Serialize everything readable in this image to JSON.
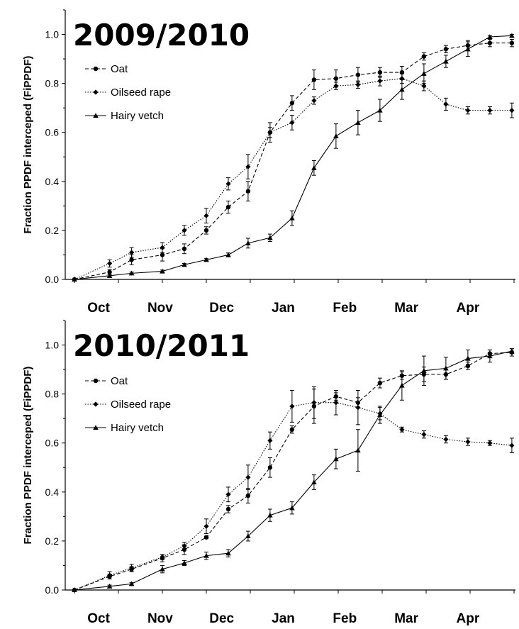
{
  "chart_data": [
    {
      "type": "line",
      "title": "2009/2010",
      "ylabel": "Fraction PPDF interceped (FiPPDF)",
      "xlabel": "",
      "ylim": [
        0,
        1.1
      ],
      "yticks": [
        "0.0",
        "0.2",
        "0.4",
        "0.6",
        "0.8",
        "1.0"
      ],
      "month_labels": [
        "Oct",
        "Nov",
        "Dec",
        "Jan",
        "Feb",
        "Mar",
        "Apr"
      ],
      "legend_position": "top-left",
      "grid": false,
      "series": [
        {
          "name": "Oat",
          "style": "dashed",
          "marker": "circle",
          "x": [
            0,
            0.8,
            1.3,
            2.0,
            2.5,
            3.0,
            3.5,
            3.95,
            4.45,
            4.95,
            5.45,
            5.95,
            6.45,
            6.95,
            7.45,
            7.95,
            8.45,
            8.95,
            9.45,
            9.95
          ],
          "values": [
            0.0,
            0.03,
            0.08,
            0.1,
            0.125,
            0.2,
            0.295,
            0.36,
            0.6,
            0.72,
            0.815,
            0.82,
            0.835,
            0.845,
            0.845,
            0.91,
            0.94,
            0.955,
            0.965,
            0.965
          ],
          "errors": [
            0,
            0.01,
            0.02,
            0.025,
            0.02,
            0.015,
            0.025,
            0.04,
            0.02,
            0.03,
            0.04,
            0.035,
            0.03,
            0.02,
            0.025,
            0.015,
            0.015,
            0.02,
            0.015,
            0.015
          ]
        },
        {
          "name": "Oilseed rape",
          "style": "dotted",
          "marker": "diamond",
          "x": [
            0,
            0.8,
            1.3,
            2.0,
            2.5,
            3.0,
            3.5,
            3.95,
            4.45,
            4.95,
            5.45,
            5.95,
            6.45,
            6.95,
            7.45,
            7.95,
            8.45,
            8.95,
            9.45,
            9.95
          ],
          "values": [
            0.0,
            0.065,
            0.11,
            0.13,
            0.2,
            0.26,
            0.39,
            0.46,
            0.6,
            0.64,
            0.73,
            0.79,
            0.795,
            0.81,
            0.82,
            0.79,
            0.715,
            0.69,
            0.69,
            0.69
          ],
          "errors": [
            0,
            0.015,
            0.02,
            0.02,
            0.02,
            0.03,
            0.025,
            0.05,
            0.04,
            0.03,
            0.015,
            0.015,
            0.015,
            0.02,
            0.02,
            0.02,
            0.025,
            0.015,
            0.015,
            0.03
          ]
        },
        {
          "name": "Hairy vetch",
          "style": "solid",
          "marker": "triangle",
          "x": [
            0,
            0.8,
            1.3,
            2.0,
            2.5,
            3.0,
            3.5,
            3.95,
            4.45,
            4.95,
            5.45,
            5.95,
            6.45,
            6.95,
            7.45,
            7.95,
            8.45,
            8.95,
            9.45,
            9.95
          ],
          "values": [
            0.0,
            0.015,
            0.025,
            0.033,
            0.06,
            0.08,
            0.1,
            0.148,
            0.17,
            0.25,
            0.455,
            0.585,
            0.64,
            0.69,
            0.775,
            0.84,
            0.89,
            0.94,
            0.99,
            0.995
          ],
          "errors": [
            0,
            0.005,
            0.005,
            0.005,
            0.005,
            0.005,
            0.008,
            0.02,
            0.015,
            0.03,
            0.03,
            0.05,
            0.05,
            0.045,
            0.04,
            0.04,
            0.025,
            0.03,
            0.005,
            0.005
          ]
        }
      ]
    },
    {
      "type": "line",
      "title": "2010/2011",
      "ylabel": "Fraction PPDF interceped (FiPPDF)",
      "xlabel": "",
      "ylim": [
        0,
        1.1
      ],
      "yticks": [
        "0.0",
        "0.2",
        "0.4",
        "0.6",
        "0.8",
        "1.0"
      ],
      "month_labels": [
        "Oct",
        "Nov",
        "Dec",
        "Jan",
        "Feb",
        "Mar",
        "Apr"
      ],
      "legend_position": "top-left",
      "grid": false,
      "series": [
        {
          "name": "Oat",
          "style": "dashed",
          "marker": "circle",
          "x": [
            0,
            0.8,
            1.3,
            2.0,
            2.5,
            3.0,
            3.5,
            3.95,
            4.45,
            4.95,
            5.45,
            5.95,
            6.45,
            6.95,
            7.45,
            7.95,
            8.45,
            8.95,
            9.45,
            9.95
          ],
          "values": [
            0.0,
            0.055,
            0.085,
            0.13,
            0.165,
            0.215,
            0.33,
            0.385,
            0.5,
            0.655,
            0.75,
            0.79,
            0.765,
            0.845,
            0.875,
            0.88,
            0.88,
            0.915,
            0.965,
            0.97
          ],
          "errors": [
            0,
            0.01,
            0.01,
            0.015,
            0.02,
            0.005,
            0.015,
            0.03,
            0.04,
            0.015,
            0.07,
            0.015,
            0.02,
            0.02,
            0.015,
            0.03,
            0.02,
            0.015,
            0.015,
            0.015
          ]
        },
        {
          "name": "Oilseed rape",
          "style": "dotted",
          "marker": "diamond",
          "x": [
            0,
            0.8,
            1.3,
            2.0,
            2.5,
            3.0,
            3.5,
            3.95,
            4.45,
            4.95,
            5.45,
            5.95,
            6.45,
            6.95,
            7.45,
            7.95,
            8.45,
            8.95,
            9.45,
            9.95
          ],
          "values": [
            0.0,
            0.06,
            0.09,
            0.135,
            0.18,
            0.26,
            0.39,
            0.46,
            0.61,
            0.75,
            0.765,
            0.765,
            0.745,
            0.72,
            0.655,
            0.635,
            0.615,
            0.605,
            0.6,
            0.59
          ],
          "errors": [
            0,
            0.015,
            0.015,
            0.01,
            0.015,
            0.03,
            0.03,
            0.05,
            0.035,
            0.065,
            0.065,
            0.05,
            0.07,
            0.025,
            0.01,
            0.015,
            0.015,
            0.015,
            0.01,
            0.03
          ]
        },
        {
          "name": "Hairy vetch",
          "style": "solid",
          "marker": "triangle",
          "x": [
            0,
            0.8,
            1.3,
            2.0,
            2.5,
            3.0,
            3.5,
            3.95,
            4.45,
            4.95,
            5.45,
            5.95,
            6.45,
            6.95,
            7.45,
            7.95,
            8.45,
            8.95,
            9.45,
            9.95
          ],
          "values": [
            0.0,
            0.015,
            0.025,
            0.085,
            0.11,
            0.14,
            0.15,
            0.22,
            0.305,
            0.335,
            0.44,
            0.535,
            0.57,
            0.715,
            0.835,
            0.895,
            0.905,
            0.945,
            0.955,
            0.975
          ],
          "errors": [
            0,
            0.005,
            0.005,
            0.015,
            0.01,
            0.015,
            0.015,
            0.02,
            0.025,
            0.025,
            0.03,
            0.04,
            0.085,
            0.035,
            0.06,
            0.06,
            0.045,
            0.035,
            0.025,
            0.01
          ]
        }
      ]
    }
  ]
}
